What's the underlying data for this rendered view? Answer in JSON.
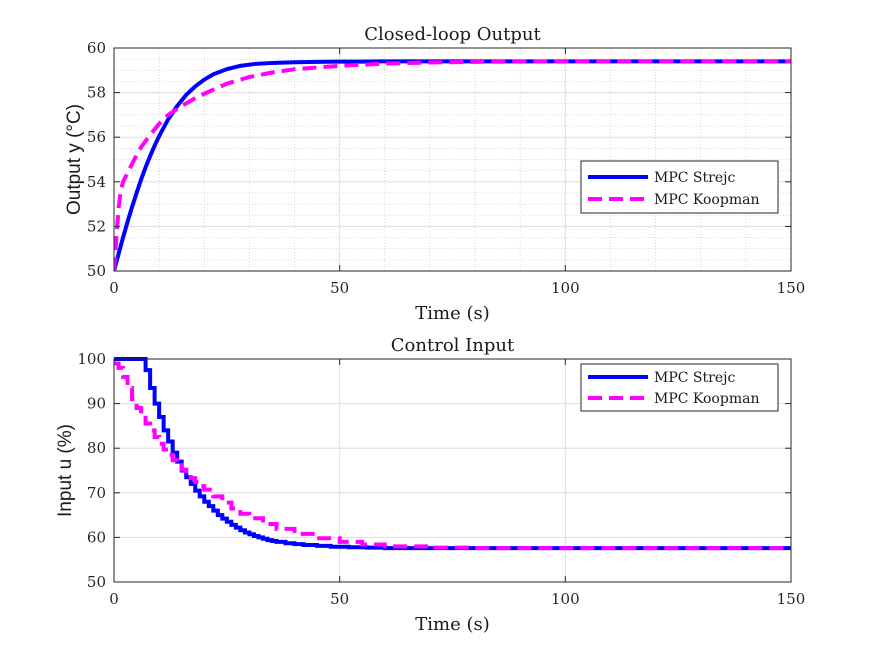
{
  "chart_data": [
    {
      "type": "line",
      "title": "Closed-loop Output",
      "xlabel": "Time (s)",
      "ylabel": "Output y (°C)",
      "xlim": [
        0,
        150
      ],
      "ylim": [
        50,
        60
      ],
      "xticks": [
        0,
        50,
        100,
        150
      ],
      "yticks": [
        50,
        52,
        54,
        56,
        58,
        60
      ],
      "grid": "major and minor",
      "legend_position": "right-middle",
      "series": [
        {
          "name": "MPC Strejc",
          "color": "#0000ff",
          "style": "solid",
          "x": [
            0,
            1,
            2,
            3,
            4,
            5,
            6,
            7,
            8,
            9,
            10,
            12,
            14,
            16,
            18,
            20,
            22,
            25,
            28,
            31,
            35,
            40,
            45,
            50,
            55,
            60,
            70,
            80,
            100,
            120,
            150
          ],
          "y": [
            50.0,
            50.76,
            51.5,
            52.2,
            52.87,
            53.5,
            54.1,
            54.65,
            55.15,
            55.62,
            56.05,
            56.8,
            57.4,
            57.9,
            58.28,
            58.58,
            58.82,
            59.05,
            59.2,
            59.28,
            59.33,
            59.36,
            59.38,
            59.39,
            59.39,
            59.4,
            59.4,
            59.4,
            59.4,
            59.4,
            59.4
          ]
        },
        {
          "name": "MPC Koopman",
          "color": "#ff00ff",
          "style": "dashed",
          "x": [
            0,
            0.5,
            1,
            1.5,
            2,
            3,
            4,
            5,
            6,
            8,
            10,
            12,
            15,
            18,
            20,
            25,
            30,
            35,
            40,
            50,
            60,
            70,
            80,
            100,
            120,
            150
          ],
          "y": [
            50.0,
            51.4,
            52.8,
            53.6,
            54.0,
            54.4,
            54.8,
            55.2,
            55.55,
            56.1,
            56.6,
            57.0,
            57.4,
            57.75,
            57.95,
            58.4,
            58.7,
            58.9,
            59.05,
            59.2,
            59.3,
            59.35,
            59.38,
            59.4,
            59.4,
            59.4
          ]
        }
      ]
    },
    {
      "type": "line",
      "title": "Control Input",
      "xlabel": "Time (s)",
      "ylabel": "Input u (%)",
      "xlim": [
        0,
        150
      ],
      "ylim": [
        50,
        100
      ],
      "xticks": [
        0,
        50,
        100,
        150
      ],
      "yticks": [
        50,
        60,
        70,
        80,
        90,
        100
      ],
      "grid": "major",
      "legend_position": "top-right",
      "series": [
        {
          "name": "MPC Strejc",
          "color": "#0000ff",
          "style": "solid-stairs",
          "x": [
            0,
            7,
            8,
            9,
            10,
            11,
            12,
            13,
            14,
            15,
            16,
            17,
            18,
            19,
            20,
            21,
            22,
            23,
            24,
            25,
            26,
            27,
            28,
            29,
            30,
            31,
            32,
            33,
            34,
            35,
            36,
            38,
            40,
            42,
            45,
            48,
            52,
            56,
            60,
            149
          ],
          "y": [
            100,
            97.5,
            93.5,
            90.0,
            87.0,
            84.0,
            81.5,
            79.0,
            77.0,
            75.0,
            73.5,
            72.0,
            70.5,
            69.2,
            68.0,
            67.0,
            66.0,
            65.0,
            64.2,
            63.5,
            62.8,
            62.2,
            61.6,
            61.1,
            60.7,
            60.3,
            60.0,
            59.7,
            59.4,
            59.2,
            59.0,
            58.7,
            58.5,
            58.3,
            58.1,
            57.9,
            57.8,
            57.7,
            57.6,
            57.6
          ]
        },
        {
          "name": "MPC Koopman",
          "color": "#ff00ff",
          "style": "dashed-stairs",
          "x": [
            0,
            1,
            2,
            3,
            4,
            5,
            6,
            7,
            8,
            9,
            10,
            11,
            12,
            13,
            14,
            15,
            16,
            17,
            18,
            19,
            20,
            22,
            24,
            26,
            28,
            30,
            33,
            36,
            40,
            45,
            50,
            55,
            60,
            70,
            80,
            90,
            149
          ],
          "y": [
            99.0,
            98.0,
            96.0,
            93.5,
            91.0,
            89.0,
            87.3,
            85.5,
            84.0,
            82.5,
            81.0,
            79.7,
            78.5,
            77.3,
            76.2,
            75.2,
            74.2,
            73.3,
            72.4,
            71.5,
            70.7,
            69.2,
            67.8,
            66.5,
            65.3,
            64.3,
            63.0,
            61.9,
            60.8,
            59.8,
            59.0,
            58.4,
            58.0,
            57.7,
            57.6,
            57.6,
            57.6
          ]
        }
      ]
    }
  ]
}
